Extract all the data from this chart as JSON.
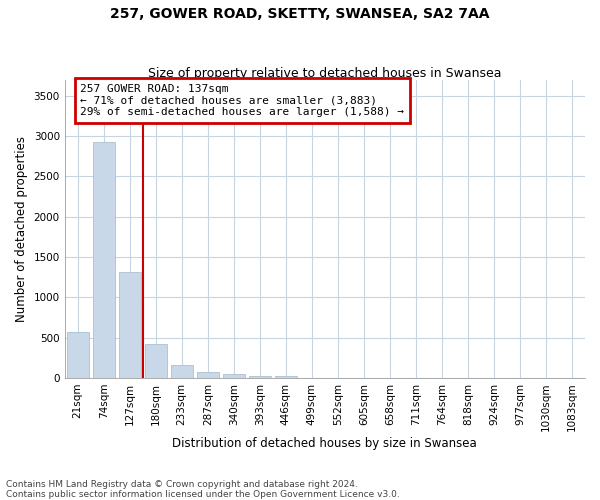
{
  "title": "257, GOWER ROAD, SKETTY, SWANSEA, SA2 7AA",
  "subtitle": "Size of property relative to detached houses in Swansea",
  "xlabel": "Distribution of detached houses by size in Swansea",
  "ylabel": "Number of detached properties",
  "footnote1": "Contains HM Land Registry data © Crown copyright and database right 2024.",
  "footnote2": "Contains public sector information licensed under the Open Government Licence v3.0.",
  "categories": [
    "21sqm",
    "74sqm",
    "127sqm",
    "180sqm",
    "233sqm",
    "287sqm",
    "340sqm",
    "393sqm",
    "446sqm",
    "499sqm",
    "552sqm",
    "605sqm",
    "658sqm",
    "711sqm",
    "764sqm",
    "818sqm",
    "924sqm",
    "977sqm",
    "1030sqm",
    "1083sqm"
  ],
  "values": [
    570,
    2920,
    1310,
    420,
    160,
    80,
    45,
    30,
    30,
    0,
    0,
    0,
    0,
    0,
    0,
    0,
    0,
    0,
    0,
    0
  ],
  "bar_color": "#c8d8e8",
  "bar_edge_color": "#a0b8cc",
  "annotation_box_color": "#cc0000",
  "annotation_text_line1": "257 GOWER ROAD: 137sqm",
  "annotation_text_line2": "← 71% of detached houses are smaller (3,883)",
  "annotation_text_line3": "29% of semi-detached houses are larger (1,588) →",
  "vline_x": 2.5,
  "vline_color": "#cc0000",
  "ylim": [
    0,
    3700
  ],
  "yticks": [
    0,
    500,
    1000,
    1500,
    2000,
    2500,
    3000,
    3500
  ],
  "background_color": "#ffffff",
  "grid_color": "#c8d4e0",
  "title_fontsize": 10,
  "subtitle_fontsize": 9,
  "axis_label_fontsize": 8.5,
  "tick_fontsize": 7.5,
  "annotation_fontsize": 8,
  "footnote_fontsize": 6.5
}
